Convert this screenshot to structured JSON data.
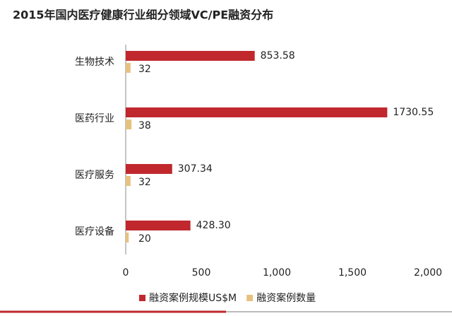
{
  "chart_data": {
    "type": "hbar",
    "title": "2015年国内医疗健康行业细分领域VC/PE融资分布",
    "categories": [
      "生物技术",
      "医药行业",
      "医疗服务",
      "医疗设备"
    ],
    "series": [
      {
        "name": "融资案例规模US$M",
        "color": "#c0282d",
        "values": [
          853.58,
          1730.55,
          307.34,
          428.3
        ],
        "value_labels": [
          "853.58",
          "1730.55",
          "307.34",
          "428.30"
        ]
      },
      {
        "name": "融资案例数量",
        "color": "#e6c27f",
        "values": [
          32,
          38,
          32,
          20
        ]
      }
    ],
    "xlim": [
      0,
      2000
    ],
    "xticks": [
      0,
      500,
      {
        "value": 1000,
        "label": "1,000"
      },
      {
        "value": 1500,
        "label": "1,500"
      },
      {
        "value": 2000,
        "label": "2,000"
      }
    ],
    "legend": "bottom"
  }
}
